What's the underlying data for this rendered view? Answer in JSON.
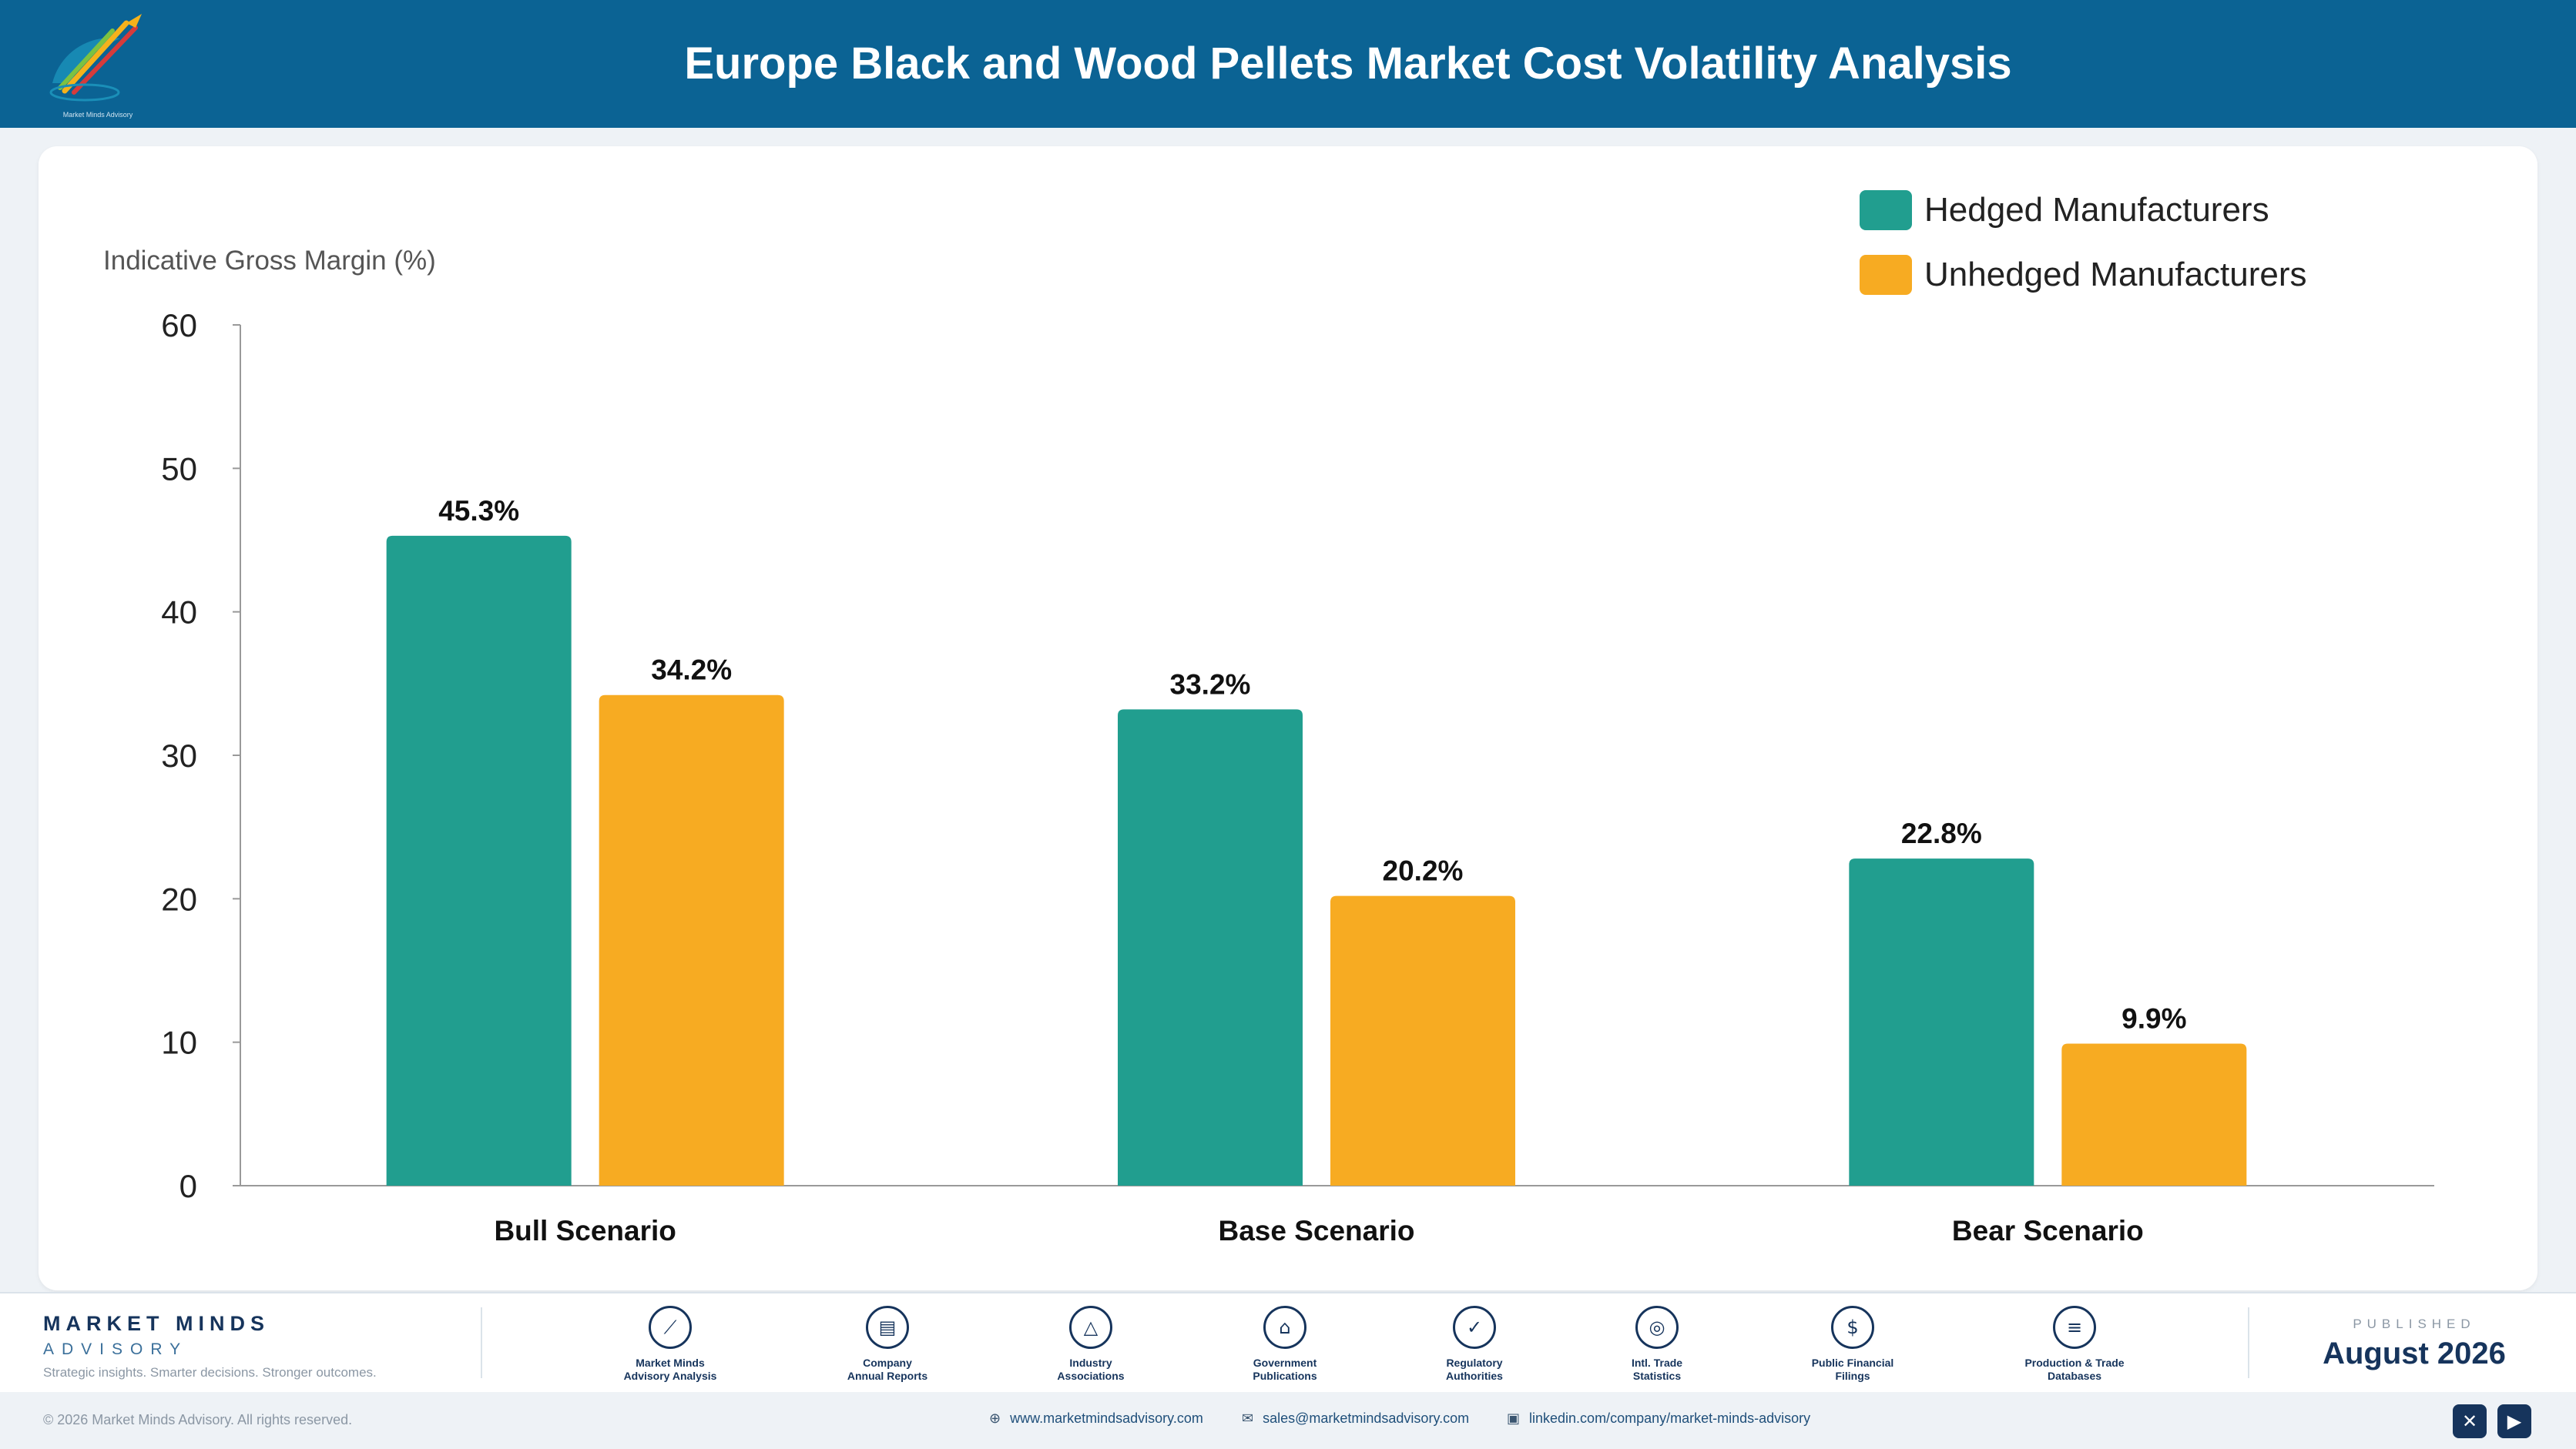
{
  "header": {
    "title": "Europe Black and Wood Pellets Market Cost Volatility Analysis"
  },
  "logo": {
    "icon": "pen-nib-logo-icon",
    "text": "Market Minds Advisory"
  },
  "chart_data": {
    "type": "bar",
    "ylabel": "Indicative Gross Margin (%)",
    "ylim": [
      0,
      60
    ],
    "yticks": [
      0,
      10,
      20,
      30,
      40,
      50,
      60
    ],
    "categories": [
      "Bull Scenario",
      "Base Scenario",
      "Bear Scenario"
    ],
    "series": [
      {
        "name": "Hedged Manufacturers",
        "color": "#219e8f",
        "values": [
          45.3,
          33.2,
          22.8
        ],
        "labels": [
          "45.3%",
          "33.2%",
          "22.8%"
        ]
      },
      {
        "name": "Unhedged Manufacturers",
        "color": "#f7ab22",
        "values": [
          34.2,
          20.2,
          9.9
        ],
        "labels": [
          "34.2%",
          "20.2%",
          "9.9%"
        ]
      }
    ],
    "legend_position": "top-right",
    "grid": false
  },
  "footer": {
    "brand_name": "MARKET MINDS",
    "brand_sub": "ADVISORY",
    "tagline": "Strategic insights. Smarter decisions. Stronger outcomes.",
    "sources": [
      {
        "label": "Market Minds\nAdvisory Analysis",
        "icon": "trend-line-icon"
      },
      {
        "label": "Company\nAnnual Reports",
        "icon": "document-icon"
      },
      {
        "label": "Industry\nAssociations",
        "icon": "network-icon"
      },
      {
        "label": "Government\nPublications",
        "icon": "government-building-icon"
      },
      {
        "label": "Regulatory\nAuthorities",
        "icon": "shield-check-icon"
      },
      {
        "label": "Intl. Trade\nStatistics",
        "icon": "globe-icon"
      },
      {
        "label": "Public Financial\nFilings",
        "icon": "dollar-coin-icon"
      },
      {
        "label": "Production & Trade\nDatabases",
        "icon": "database-icon"
      }
    ],
    "published_label": "PUBLISHED",
    "published_date": "August 2026",
    "copyright": "© 2026 Market Minds Advisory. All rights reserved.",
    "website": "www.marketmindsadvisory.com",
    "email": "sales@marketmindsadvisory.com",
    "linkedin": "linkedin.com/company/market-minds-advisory",
    "social": [
      "x-icon",
      "youtube-icon"
    ]
  }
}
